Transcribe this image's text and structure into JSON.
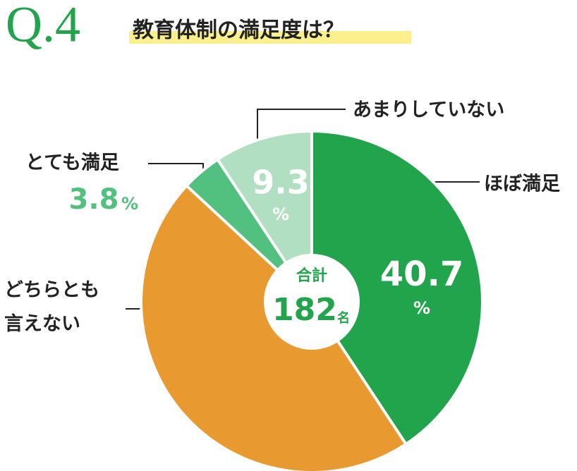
{
  "chart_data": {
    "type": "donut",
    "title": "Q.4",
    "subtitle": "教育体制の満足度は？",
    "categories": [
      "ほぼ満足",
      "どちらとも言えない",
      "とても満足",
      "あまりしていない"
    ],
    "values": [
      40.7,
      46.2,
      3.8,
      9.3
    ],
    "colors": [
      "#22a44c",
      "#e89a30",
      "#52c07f",
      "#b1dfc1"
    ],
    "value_unit": "%",
    "center_label": "合計",
    "total": 182,
    "total_unit": "名"
  }
}
